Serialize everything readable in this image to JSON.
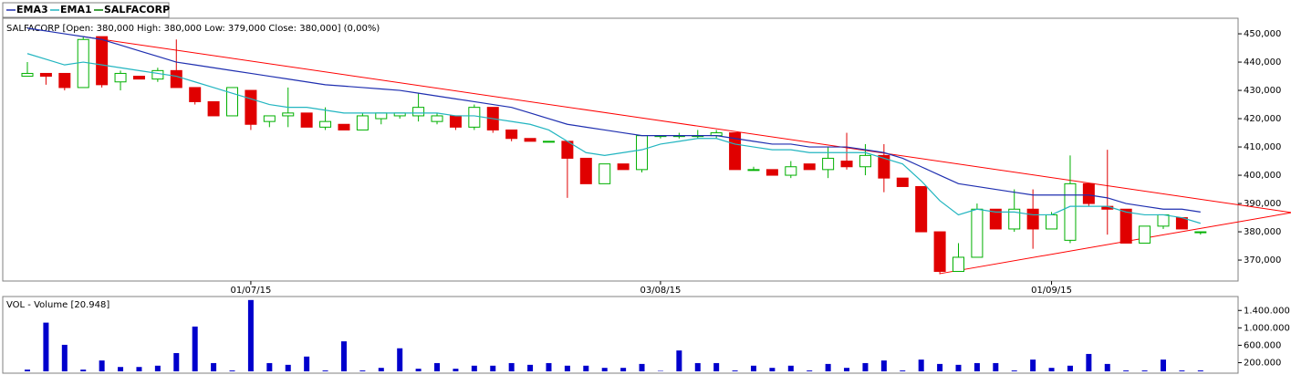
{
  "chart_data": [
    {
      "type": "candlestick",
      "title": "SALFACORP [Open: 380,000  High: 380,000  Low: 379,000  Close: 380,000] (0,00%)",
      "name": "SALFACORP",
      "color": "#008000",
      "up_color": "#00b000",
      "down_color": "#e00000",
      "categories": [
        null,
        null,
        null,
        null,
        null,
        null,
        null,
        null,
        null,
        null,
        null,
        null,
        "01/07/15",
        null,
        null,
        null,
        null,
        null,
        null,
        null,
        null,
        null,
        null,
        null,
        null,
        null,
        null,
        null,
        null,
        null,
        null,
        null,
        null,
        null,
        "03/08/15",
        null,
        null,
        null,
        null,
        null,
        null,
        null,
        null,
        null,
        null,
        null,
        null,
        null,
        null,
        null,
        null,
        null,
        null,
        null,
        null,
        "01/09/15",
        null,
        null,
        null,
        null,
        null,
        null,
        null,
        null
      ],
      "open": [
        435000,
        436000,
        436000,
        431000,
        449000,
        433000,
        435000,
        434000,
        437000,
        431000,
        426000,
        421000,
        430000,
        419000,
        421000,
        422000,
        417000,
        418000,
        416000,
        420000,
        421000,
        421000,
        419000,
        421000,
        417000,
        424000,
        416000,
        413000,
        412000,
        412000,
        406000,
        397000,
        404000,
        402000,
        414000,
        414000,
        414000,
        414000,
        415000,
        402000,
        402000,
        400000,
        404000,
        402000,
        405000,
        403000,
        407000,
        399000,
        396000,
        380000,
        366000,
        371000,
        388000,
        381000,
        388000,
        381000,
        377000,
        397000,
        389000,
        388000,
        376000,
        382000,
        385000,
        380000
      ],
      "high": [
        440000,
        436000,
        436000,
        449000,
        449000,
        437000,
        435000,
        438000,
        448000,
        431000,
        426000,
        431000,
        430000,
        421000,
        431000,
        422000,
        424000,
        418000,
        422000,
        422000,
        422000,
        429000,
        422000,
        421000,
        425000,
        424000,
        416000,
        413000,
        412000,
        412000,
        406000,
        404000,
        404000,
        414000,
        414000,
        415000,
        416000,
        416000,
        415000,
        403000,
        402000,
        405000,
        404000,
        410000,
        415000,
        411000,
        411000,
        399000,
        396000,
        380000,
        376000,
        390000,
        388000,
        395000,
        395000,
        387000,
        407000,
        397000,
        409000,
        388000,
        382000,
        386000,
        385000,
        380000
      ],
      "low": [
        435000,
        432000,
        430000,
        431000,
        431000,
        430000,
        434000,
        433000,
        431000,
        425000,
        421000,
        421000,
        416000,
        417000,
        417000,
        417000,
        416000,
        416000,
        416000,
        418000,
        420000,
        419000,
        418000,
        416000,
        416000,
        415000,
        412000,
        412000,
        412000,
        392000,
        397000,
        397000,
        402000,
        401000,
        413000,
        413000,
        413000,
        413000,
        402000,
        402000,
        400000,
        399000,
        402000,
        399000,
        402000,
        400000,
        394000,
        396000,
        380000,
        365000,
        366000,
        371000,
        381000,
        380000,
        374000,
        381000,
        376000,
        389000,
        379000,
        376000,
        376000,
        381000,
        381000,
        379000
      ],
      "close": [
        436000,
        435000,
        431000,
        448000,
        432000,
        436000,
        434000,
        437000,
        431000,
        426000,
        421000,
        431000,
        418000,
        421000,
        422000,
        417000,
        419000,
        416000,
        421000,
        422000,
        422000,
        424000,
        421000,
        417000,
        424000,
        416000,
        413000,
        412000,
        412000,
        406000,
        397000,
        404000,
        402000,
        414000,
        414000,
        414000,
        414000,
        415000,
        402000,
        402000,
        400000,
        403000,
        402000,
        406000,
        403000,
        407000,
        399000,
        396000,
        380000,
        366000,
        371000,
        388000,
        381000,
        388000,
        381000,
        386000,
        397000,
        390000,
        388000,
        376000,
        382000,
        386000,
        381000,
        380000
      ],
      "series": [
        {
          "name": "EMA3",
          "color": "#1f2fb0",
          "values": [
            452000,
            451000,
            450000,
            449000,
            448000,
            446000,
            444000,
            442000,
            440000,
            439000,
            438000,
            437000,
            436000,
            435000,
            434000,
            433000,
            432000,
            431500,
            431000,
            430500,
            430000,
            429000,
            428000,
            427000,
            426000,
            425000,
            424000,
            422000,
            420000,
            418000,
            417000,
            416000,
            415000,
            414000,
            414000,
            414000,
            414000,
            414000,
            413000,
            412000,
            411000,
            411000,
            410000,
            410000,
            410000,
            409000,
            408000,
            406000,
            403000,
            400000,
            397000,
            396000,
            395000,
            394000,
            393000,
            393000,
            393000,
            393000,
            392000,
            390000,
            389000,
            388000,
            388000,
            387000
          ]
        },
        {
          "name": "EMA1",
          "color": "#22b5c0",
          "values": [
            443000,
            441000,
            439000,
            440000,
            439000,
            438000,
            437000,
            436000,
            435000,
            433000,
            431000,
            429000,
            427000,
            425000,
            424000,
            424000,
            423000,
            422000,
            422000,
            422000,
            422000,
            422000,
            422000,
            421000,
            421000,
            420000,
            419000,
            418000,
            416000,
            412000,
            408000,
            407000,
            408000,
            409000,
            411000,
            412000,
            413000,
            413000,
            411000,
            410000,
            409000,
            409000,
            408000,
            408000,
            408000,
            408000,
            406000,
            404000,
            398000,
            391000,
            386000,
            388000,
            387000,
            387000,
            386000,
            386000,
            389000,
            389000,
            389000,
            387000,
            386000,
            386000,
            385000,
            383000
          ]
        }
      ],
      "trendlines": [
        {
          "color": "#ff0000",
          "x": [
            3,
            67.9
          ],
          "y": [
            449000,
            386800
          ]
        },
        {
          "color": "#ff0000",
          "x": [
            49,
            67.9
          ],
          "y": [
            365200,
            386800
          ]
        }
      ],
      "ylim": [
        362600,
        455500
      ],
      "yticks": [
        {
          "value": 370000,
          "label": "370,000"
        },
        {
          "value": 380000,
          "label": "380,000"
        },
        {
          "value": 390000,
          "label": "390,000"
        },
        {
          "value": 400000,
          "label": "400,000"
        },
        {
          "value": 410000,
          "label": "410,000"
        },
        {
          "value": 420000,
          "label": "420,000"
        },
        {
          "value": 430000,
          "label": "430,000"
        },
        {
          "value": 440000,
          "label": "440,000"
        },
        {
          "value": 450000,
          "label": "450,000"
        }
      ]
    },
    {
      "type": "bar",
      "title": "VOL - Volume [20.948]",
      "color": "#0000cc",
      "values": [
        40000,
        1120000,
        610000,
        40000,
        250000,
        100000,
        100000,
        130000,
        420000,
        1030000,
        190000,
        20000,
        1640000,
        190000,
        150000,
        340000,
        20000,
        690000,
        20000,
        80000,
        530000,
        60000,
        190000,
        60000,
        130000,
        130000,
        190000,
        150000,
        190000,
        130000,
        130000,
        80000,
        80000,
        170000,
        10000,
        480000,
        190000,
        190000,
        20000,
        130000,
        80000,
        130000,
        20000,
        170000,
        80000,
        190000,
        250000,
        20000,
        270000,
        170000,
        150000,
        190000,
        190000,
        20000,
        270000,
        80000,
        130000,
        400000,
        170000,
        20000,
        20000,
        270000,
        20000,
        20948
      ],
      "ylim": [
        0,
        1720000
      ],
      "yticks": [
        {
          "value": 200000,
          "label": "200.000"
        },
        {
          "value": 600000,
          "label": "600.000"
        },
        {
          "value": 1000000,
          "label": "1.000.000"
        },
        {
          "value": 1400000,
          "label": "1.400.000"
        }
      ]
    }
  ]
}
